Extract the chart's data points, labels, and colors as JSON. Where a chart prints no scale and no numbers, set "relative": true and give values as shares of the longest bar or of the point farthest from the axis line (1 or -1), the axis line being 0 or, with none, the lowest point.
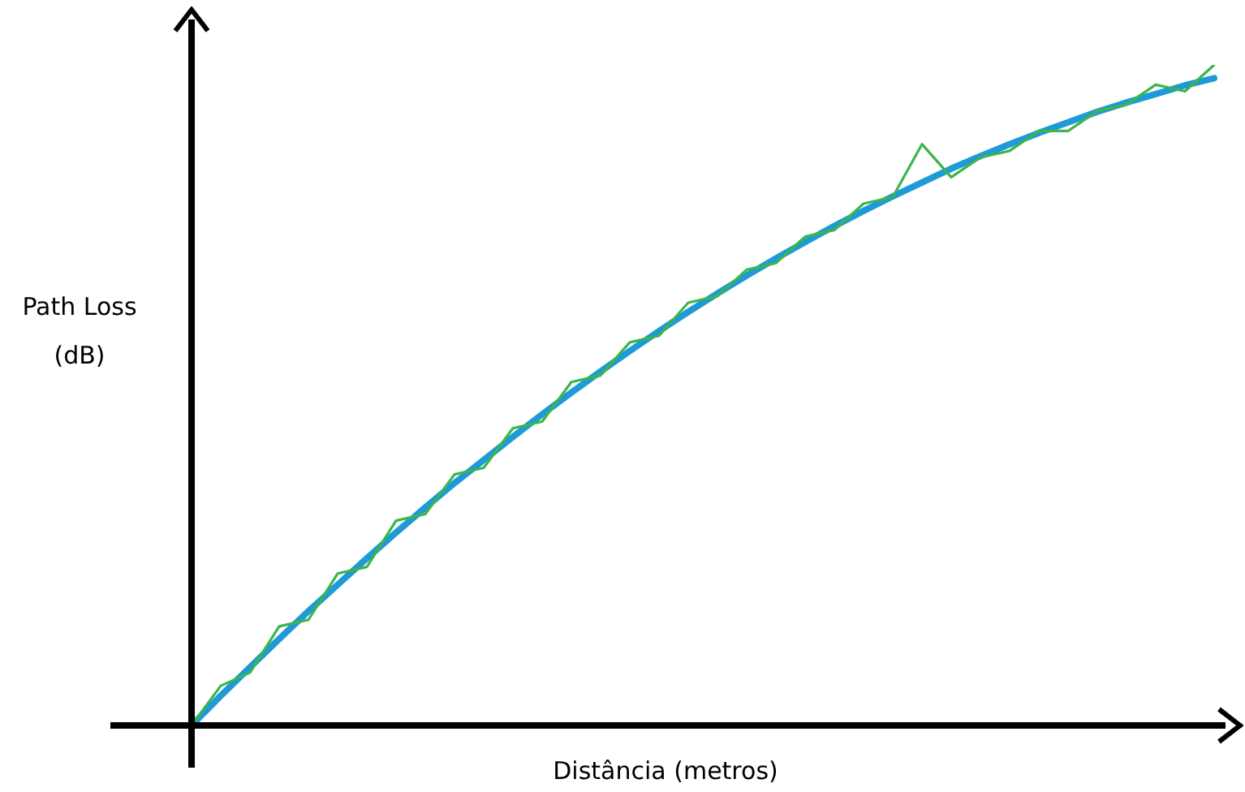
{
  "chart_data": {
    "type": "line",
    "relative": true,
    "xlabel": "Distância (metros)",
    "ylabel": "Path Loss (dB)",
    "categories": [
      null,
      null,
      null,
      null,
      null,
      null,
      null,
      null,
      null,
      null,
      null,
      null,
      null,
      null,
      null,
      null,
      null,
      null,
      null,
      null,
      null,
      null,
      null,
      null,
      null,
      null,
      null,
      null,
      null,
      null,
      null,
      null,
      null,
      null,
      null,
      null
    ],
    "series": [
      {
        "color": "#3cb54a",
        "values": [
          0,
          0.06,
          0.08,
          0.15,
          0.16,
          0.23,
          0.24,
          0.31,
          0.32,
          0.38,
          0.39,
          0.45,
          0.46,
          0.52,
          0.53,
          0.58,
          0.59,
          0.64,
          0.65,
          0.69,
          0.7,
          0.74,
          0.75,
          0.79,
          0.8,
          0.88,
          0.83,
          0.86,
          0.87,
          0.9,
          0.9,
          0.93,
          0.94,
          0.97,
          0.96,
          1.0
        ]
      },
      {
        "color": "#1e9ad6",
        "values": [
          0,
          0.045,
          0.088,
          0.131,
          0.173,
          0.213,
          0.253,
          0.292,
          0.33,
          0.367,
          0.402,
          0.437,
          0.471,
          0.504,
          0.536,
          0.567,
          0.597,
          0.626,
          0.654,
          0.681,
          0.707,
          0.732,
          0.756,
          0.779,
          0.801,
          0.822,
          0.843,
          0.862,
          0.88,
          0.897,
          0.913,
          0.929,
          0.943,
          0.956,
          0.969,
          0.98
        ]
      }
    ]
  }
}
